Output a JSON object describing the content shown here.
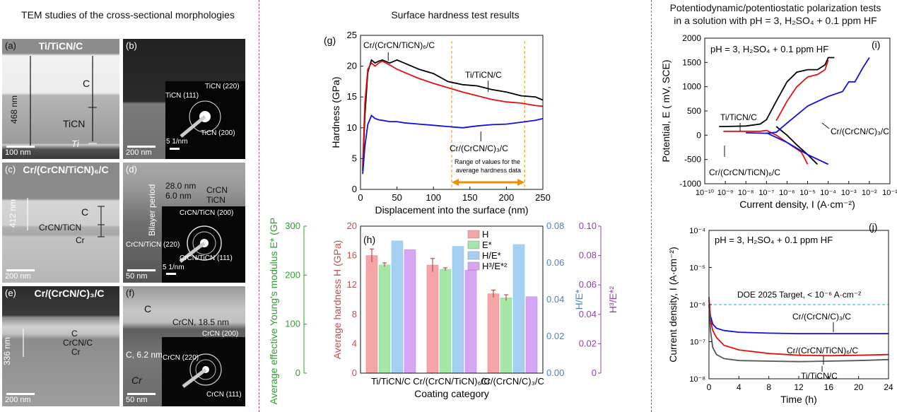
{
  "titles": {
    "left": "TEM studies of the cross-sectional morphologies",
    "middle": "Surface hardness test results",
    "right_line1": "Potentiodynamic/potentiostatic polarization tests",
    "right_line2": "in a solution with pH = 3, H₂SO₄ + 0.1 ppm HF"
  },
  "tem": {
    "a": {
      "label": "(a)",
      "title": "Ti/TiCN/C",
      "thickness": "468 nm",
      "layer_c": "C",
      "layer_ticn": "TiCN",
      "layer_ti": "Ti",
      "scale": "100 nm"
    },
    "b": {
      "label": "(b)",
      "scale": "200 nm",
      "ring1": "TiCN (111)",
      "ring2": "TiCN (220)",
      "ring3": "TiCN (200)",
      "saed_scale": "5 1/nm"
    },
    "c": {
      "label": "(c)",
      "title": "Cr/(CrCN/TiCN)₆/C",
      "thickness": "412 nm",
      "layer_c": "C",
      "layer_mid": "CrCN/TiCN",
      "layer_cr": "Cr",
      "scale": "200 nm"
    },
    "d": {
      "label": "(d)",
      "period": "Bilayer period",
      "l1v": "28.0 nm",
      "l1": "CrCN",
      "l2v": "6.0 nm",
      "l2": "TiCN",
      "ring1": "CrCN/TiCN (200)",
      "ring2": "CrCN/TiCN (220)",
      "ring3": "CrCN/TiCN (111)",
      "saed_scale": "5 1/nm",
      "scale": "50 nm"
    },
    "e": {
      "label": "(e)",
      "title": "Cr/(CrCN/C)₃/C",
      "thickness": "336 nm",
      "layer_c": "C",
      "layer_mid": "CrCN/C",
      "layer_cr": "Cr",
      "scale": "200 nm"
    },
    "f": {
      "label": "(f)",
      "layer_c": "C",
      "crcn": "CrCN, 18.5 nm",
      "cthk": "C, 6.2 nm",
      "layer_cr": "Cr",
      "ring1": "CrCN (200)",
      "ring2": "CrCN (220)",
      "ring3": "CrCN (111)",
      "scale": "50 nm"
    }
  },
  "chart_data": [
    {
      "type": "line",
      "panel": "(g)",
      "xlabel": "Displacement into the surface (nm)",
      "ylabel": "Hardness (GPa)",
      "xlim": [
        0,
        250
      ],
      "ylim": [
        0,
        25
      ],
      "xticks": [
        "0",
        "50",
        "100",
        "150",
        "200",
        "250"
      ],
      "yticks": [
        "0",
        "5",
        "10",
        "15",
        "20",
        "25"
      ],
      "range_note_line1": "Range of values for the",
      "range_note_line2": "average hardness data",
      "range_x": [
        125,
        225
      ],
      "series": [
        {
          "name": "Ti/TiCN/C",
          "color": "#000000",
          "x": [
            3,
            6,
            10,
            15,
            20,
            25,
            30,
            40,
            50,
            60,
            80,
            100,
            120,
            140,
            160,
            180,
            200,
            220,
            240,
            250
          ],
          "y": [
            3,
            12,
            19,
            21,
            20.5,
            20.8,
            21,
            20.5,
            21,
            20.5,
            19.5,
            18.8,
            17.5,
            17,
            16.8,
            16.2,
            15.8,
            15.2,
            15,
            14.5
          ]
        },
        {
          "name": "Cr/(CrCN/TiCN)₆/C",
          "color": "#e01010",
          "x": [
            3,
            6,
            10,
            15,
            20,
            25,
            30,
            40,
            50,
            60,
            80,
            100,
            120,
            140,
            160,
            180,
            200,
            220,
            240,
            250
          ],
          "y": [
            4,
            14,
            19.5,
            20.5,
            20,
            20.5,
            20.8,
            20.2,
            19.5,
            19,
            18,
            17.2,
            16.5,
            15.8,
            15.2,
            14.6,
            14.2,
            14,
            13.6,
            13.5
          ]
        },
        {
          "name": "Cr/(CrCN/C)₃/C",
          "color": "#1010e0",
          "x": [
            3,
            6,
            10,
            15,
            20,
            25,
            30,
            40,
            50,
            60,
            80,
            100,
            120,
            140,
            160,
            180,
            200,
            220,
            240,
            250
          ],
          "y": [
            2.5,
            7,
            10.5,
            12,
            11.5,
            11.3,
            11.2,
            11,
            11,
            10.8,
            10.6,
            10.4,
            10.2,
            10,
            10.3,
            10.5,
            10.6,
            10.9,
            11.2,
            11.5
          ]
        }
      ]
    },
    {
      "type": "bar",
      "panel": "(h)",
      "categories": [
        "Ti/TiCN/C",
        "Cr/(CrCN/TiCN)₆/C",
        "Cr/(CrCN/C)₃/C"
      ],
      "xlabel": "Coating category",
      "ylabel_left": "Average hardness H (GPa)",
      "ylabel_far_left": "Average effective Young's modulus E* (GPa)",
      "ylabel_right1": "H/E*",
      "ylabel_right2": "H³/E*²",
      "axes": {
        "H": {
          "ylim": [
            0,
            20
          ],
          "ticks": [
            "0",
            "4",
            "8",
            "12",
            "16",
            "20"
          ],
          "color": "#c0504d"
        },
        "E": {
          "ylim": [
            0,
            300
          ],
          "ticks": [
            "0",
            "100",
            "200",
            "300"
          ],
          "color": "#2ca02c"
        },
        "HE": {
          "ylim": [
            0,
            0.08
          ],
          "ticks": [
            "0.00",
            "0.02",
            "0.04",
            "0.06",
            "0.08"
          ],
          "color": "#4f81bd"
        },
        "H3E2": {
          "ylim": [
            0,
            0.1
          ],
          "ticks": [
            "0",
            "0.02",
            "0.04",
            "0.06",
            "0.08",
            "0.10"
          ],
          "color": "#8e44ad"
        }
      },
      "series": [
        {
          "name": "H",
          "axis": "H",
          "color": "#f4a6a6",
          "values": [
            16.0,
            14.7,
            10.8
          ],
          "errors": [
            0.9,
            0.9,
            0.5
          ]
        },
        {
          "name": "E*",
          "axis": "E",
          "color": "#a6e6a6",
          "values": [
            221,
            212,
            154
          ],
          "errors": [
            4,
            3,
            6
          ]
        },
        {
          "name": "H/E*",
          "axis": "HE",
          "color": "#a6cff4",
          "values": [
            0.072,
            0.069,
            0.07
          ],
          "errors": [
            0,
            0,
            0
          ]
        },
        {
          "name": "H³/E*²",
          "axis": "H3E2",
          "color": "#d6a6f4",
          "values": [
            0.084,
            0.07,
            0.052
          ],
          "errors": [
            0,
            0,
            0
          ]
        }
      ]
    },
    {
      "type": "line",
      "panel": "(i)",
      "annotation": "pH = 3, H₂SO₄ + 0.1 ppm HF",
      "xlabel": "Current density, I (A·cm⁻²)",
      "ylabel": "Potential, E ( mV, SCE)",
      "xscale": "log",
      "xlim": [
        1e-10,
        0.1
      ],
      "ylim": [
        -1000,
        2000
      ],
      "xticks": [
        "10⁻¹⁰",
        "10⁻⁹",
        "10⁻⁸",
        "10⁻⁷",
        "10⁻⁶",
        "10⁻⁵",
        "10⁻⁴",
        "10⁻³",
        "10⁻²",
        "10⁻¹"
      ],
      "yticks": [
        "-1000",
        "-500",
        "0",
        "500",
        "1000",
        "1500",
        "2000"
      ],
      "series": [
        {
          "name": "Ti/TiCN/C",
          "color": "#000000",
          "x": [
            5e-10,
            1e-09,
            1e-08,
            5e-08,
            1e-07,
            3e-07,
            1e-06,
            3e-06,
            1e-05,
            3e-05,
            7e-05,
            0.0001,
            0.0002
          ],
          "y": [
            180,
            180,
            190,
            230,
            320,
            700,
            1100,
            1300,
            1350,
            1350,
            1450,
            1600,
            1600
          ]
        },
        {
          "name": "Ti/TiCN/C cathodic",
          "color": "#000000",
          "x": [
            3e-07,
            1e-06,
            3e-06,
            1e-05,
            3e-05
          ],
          "y": [
            180,
            0,
            -200,
            -400,
            -600
          ]
        },
        {
          "name": "Cr/(CrCN/TiCN)₆/C",
          "color": "#e01010",
          "x": [
            3e-07,
            1e-06,
            3e-06,
            1e-05,
            3e-05,
            7e-05,
            0.0001
          ],
          "y": [
            300,
            700,
            1000,
            1200,
            1250,
            1350,
            1550
          ]
        },
        {
          "name": "Cr/(CrCN/TiCN)₆/C cathodic",
          "color": "#e01010",
          "x": [
            8e-10,
            1e-09,
            1e-08,
            5e-08,
            1e-07,
            3e-07,
            1e-06,
            5e-06,
            1e-05
          ],
          "y": [
            80,
            80,
            80,
            80,
            100,
            0,
            -150,
            -350,
            -600
          ]
        },
        {
          "name": "Cr/(CrCN/C)₃/C",
          "color": "#1010e0",
          "x": [
            1e-08,
            1e-07,
            3e-07,
            1e-06,
            1e-05,
            0.0001,
            0.0005,
            0.001,
            0.002,
            0.005,
            0.01
          ],
          "y": [
            50,
            40,
            60,
            250,
            600,
            800,
            900,
            1100,
            1100,
            1400,
            1600
          ]
        },
        {
          "name": "Cr/(CrCN/C)₃/C cathodic",
          "color": "#1010e0",
          "x": [
            1e-07,
            1e-06,
            1e-05,
            0.0001
          ],
          "y": [
            50,
            -150,
            -400,
            -600
          ]
        }
      ]
    },
    {
      "type": "line",
      "panel": "(j)",
      "annotation": "pH = 3, H₂SO₄ + 0.1 ppm HF",
      "target_label": "DOE 2025 Target, < 10⁻⁶ A·cm⁻²",
      "target_value": 1e-06,
      "xlabel": "Time (h)",
      "ylabel": "Current density, I (A·cm⁻²)",
      "yscale": "log",
      "xlim": [
        0,
        24
      ],
      "ylim": [
        1e-08,
        0.0001
      ],
      "xticks": [
        "0",
        "4",
        "8",
        "12",
        "16",
        "20",
        "24"
      ],
      "yticks": [
        "10⁻⁸",
        "10⁻⁷",
        "10⁻⁶",
        "10⁻⁵",
        "10⁻⁴"
      ],
      "series": [
        {
          "name": "Cr/(CrCN/C)₃/C",
          "color": "#1010e0",
          "x": [
            0,
            0.2,
            0.5,
            1,
            2,
            4,
            8,
            12,
            16,
            20,
            24
          ],
          "y": [
            1.3e-06,
            5e-07,
            3e-07,
            2.3e-07,
            2e-07,
            1.8e-07,
            1.7e-07,
            1.65e-07,
            1.65e-07,
            1.65e-07,
            1.65e-07
          ]
        },
        {
          "name": "Cr/(CrCN/TiCN)₆/C",
          "color": "#e01010",
          "x": [
            0,
            0.2,
            0.5,
            1,
            2,
            4,
            8,
            12,
            16,
            20,
            24
          ],
          "y": [
            1.6e-06,
            4e-07,
            2e-07,
            1.3e-07,
            8e-08,
            6e-08,
            4.8e-08,
            4.3e-08,
            4.2e-08,
            4.3e-08,
            4.5e-08
          ]
        },
        {
          "name": "Ti/TiCN/C",
          "color": "#555555",
          "x": [
            0,
            0.2,
            0.5,
            1,
            2,
            4,
            8,
            12,
            16,
            20,
            24
          ],
          "y": [
            1e-06,
            2e-07,
            7e-08,
            4.5e-08,
            3.5e-08,
            3.1e-08,
            3e-08,
            2.9e-08,
            3e-08,
            3.1e-08,
            3.3e-08
          ]
        }
      ]
    }
  ]
}
